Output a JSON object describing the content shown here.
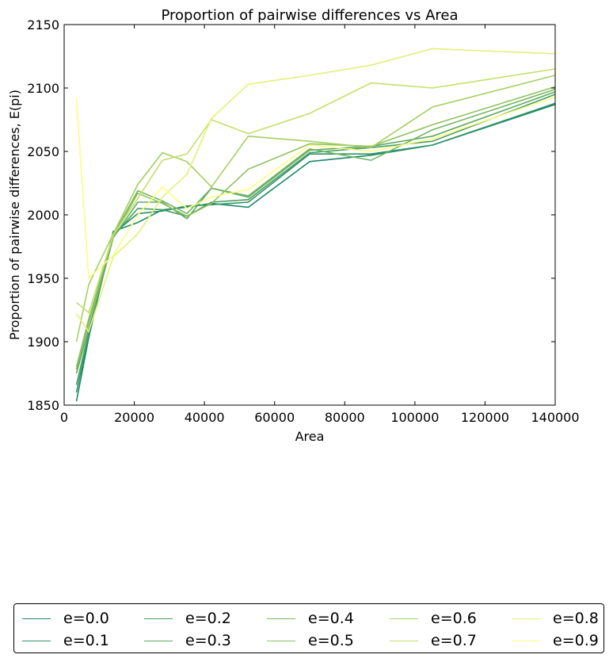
{
  "chart_data": {
    "type": "line",
    "title": "Proportion of pairwise differences vs Area",
    "xlabel": "Area",
    "ylabel": "Proportion of pairwise differences, E(pi)",
    "xlim": [
      0,
      140000
    ],
    "ylim": [
      1850,
      2150
    ],
    "xticks": [
      0,
      20000,
      40000,
      60000,
      80000,
      100000,
      120000,
      140000
    ],
    "yticks": [
      1850,
      1900,
      1950,
      2000,
      2050,
      2100,
      2150
    ],
    "grid": false,
    "legend_position": "bottom, below plot",
    "x": [
      3500,
      7000,
      14000,
      21000,
      28000,
      35000,
      42000,
      52500,
      70000,
      87500,
      105000,
      140000
    ],
    "series": [
      {
        "name": "e=0.0",
        "color": "#1b8a6a",
        "values": [
          1853,
          1903,
          1987,
          1994,
          2004,
          2006,
          2009,
          2006,
          2042,
          2047,
          2055,
          2087
        ]
      },
      {
        "name": "e=0.1",
        "color": "#2e9366",
        "values": [
          1860,
          1905,
          1985,
          2001,
          2003,
          2007,
          2008,
          2010,
          2048,
          2048,
          2055,
          2088
        ]
      },
      {
        "name": "e=0.2",
        "color": "#479e63",
        "values": [
          1866,
          1907,
          1983,
          2005,
          2004,
          1999,
          2010,
          2012,
          2049,
          2053,
          2058,
          2095
        ]
      },
      {
        "name": "e=0.3",
        "color": "#5eaa61",
        "values": [
          1875,
          1910,
          1982,
          2010,
          2010,
          1997,
          2021,
          2014,
          2051,
          2054,
          2062,
          2097
        ]
      },
      {
        "name": "e=0.4",
        "color": "#76b55f",
        "values": [
          1878,
          1915,
          1984,
          2019,
          2011,
          2001,
          2021,
          2015,
          2052,
          2043,
          2067,
          2099
        ]
      },
      {
        "name": "e=0.5",
        "color": "#8ec25e",
        "values": [
          1880,
          1918,
          1983,
          2017,
          2009,
          1999,
          2009,
          2036,
          2056,
          2054,
          2071,
          2101
        ]
      },
      {
        "name": "e=0.6",
        "color": "#a5cf5e",
        "values": [
          1900,
          1945,
          1985,
          2024,
          2049,
          2042,
          2022,
          2062,
          2058,
          2053,
          2085,
          2110
        ]
      },
      {
        "name": "e=0.7",
        "color": "#c5df69",
        "values": [
          1931,
          1923,
          1984,
          2013,
          2043,
          2048,
          2075,
          2064,
          2080,
          2104,
          2100,
          2115
        ]
      },
      {
        "name": "e=0.8",
        "color": "#e4ef77",
        "values": [
          1922,
          1908,
          1967,
          1985,
          2014,
          2032,
          2076,
          2103,
          2110,
          2118,
          2131,
          2127
        ]
      },
      {
        "name": "e=0.9",
        "color": "#fbfd80",
        "values": [
          2092,
          1950,
          1968,
          2000,
          2022,
          2005,
          2014,
          2020,
          2055,
          2050,
          2060,
          2093
        ]
      }
    ]
  }
}
